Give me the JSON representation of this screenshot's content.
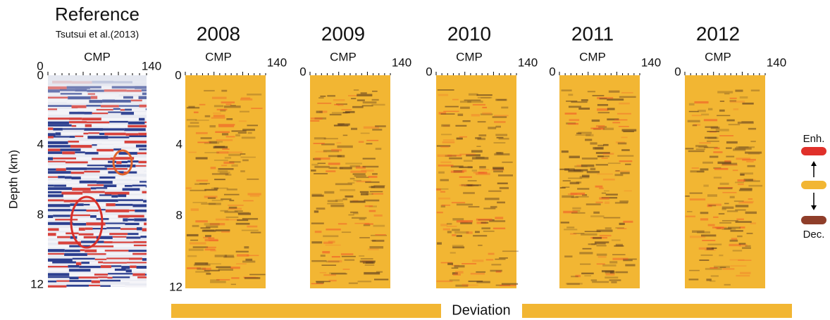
{
  "reference": {
    "title": "Reference",
    "citation": "Tsutsui et al.(2013)",
    "x_label": "CMP",
    "x_ticks": [
      "0",
      "140"
    ],
    "y_label": "Depth (km)",
    "y_ticks": [
      "0",
      "4",
      "8",
      "12"
    ]
  },
  "panels": [
    {
      "year": "2008",
      "x_label": "CMP",
      "x_ticks": [
        "0",
        "140"
      ],
      "y_ticks": [
        "0",
        "4",
        "8",
        "12"
      ]
    },
    {
      "year": "2009",
      "x_label": "CMP",
      "x_ticks": [
        "0",
        "140"
      ]
    },
    {
      "year": "2010",
      "x_label": "CMP",
      "x_ticks": [
        "0",
        "140"
      ]
    },
    {
      "year": "2011",
      "x_label": "CMP",
      "x_ticks": [
        "0",
        "140"
      ]
    },
    {
      "year": "2012",
      "x_label": "CMP",
      "x_ticks": [
        "0",
        "140"
      ]
    }
  ],
  "legend": {
    "top": "Enh.",
    "bottom": "Dec."
  },
  "footer": {
    "label": "Deviation"
  }
}
